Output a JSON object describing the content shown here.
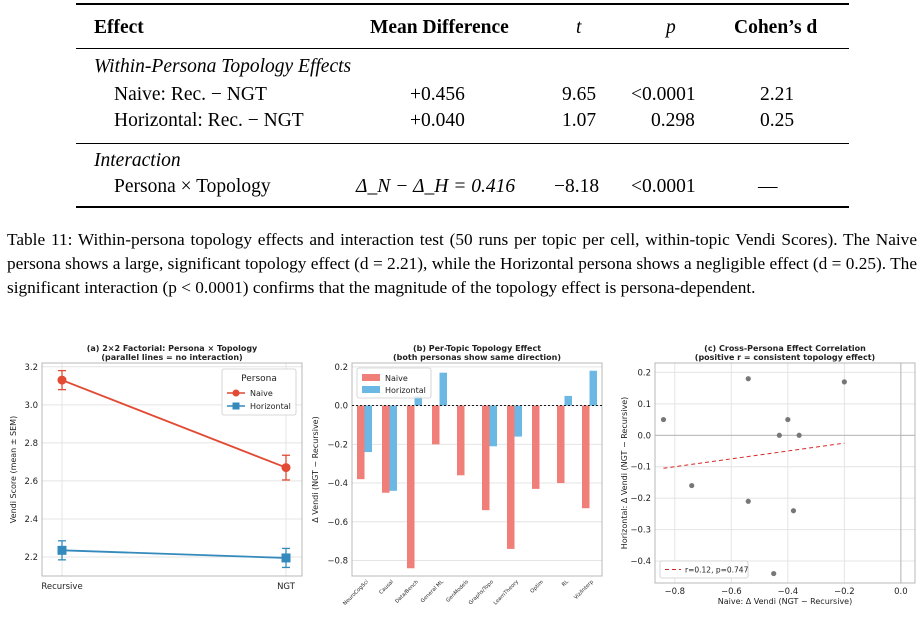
{
  "table": {
    "headers": {
      "effect": "Effect",
      "mean_diff": "Mean Difference",
      "t": "t",
      "p": "p",
      "cohens_d": "Cohen’s d"
    },
    "sections": [
      {
        "title": "Within-Persona Topology Effects",
        "rows": [
          {
            "effect": "Naive: Rec. − NGT",
            "mean_diff": "+0.456",
            "t": "9.65",
            "p": "<0.0001",
            "d": "2.21"
          },
          {
            "effect": "Horizontal: Rec. − NGT",
            "mean_diff": "+0.040",
            "t": "1.07",
            "p": "0.298",
            "d": "0.25"
          }
        ]
      },
      {
        "title": "Interaction",
        "rows": [
          {
            "effect": "Persona × Topology",
            "mean_diff": "Δ_N − Δ_H = 0.416",
            "t": "−8.18",
            "p": "<0.0001",
            "d": "—"
          }
        ]
      }
    ]
  },
  "caption": "Table 11: Within-persona topology effects and interaction test (50 runs per topic per cell, within-topic Vendi Scores). The Naive persona shows a large, significant topology effect (d = 2.21), while the Horizontal persona shows a negligible effect (d = 0.25). The significant interaction (p < 0.0001) confirms that the magnitude of the topology effect is persona-dependent.",
  "chart_data": [
    {
      "type": "line",
      "title": "(a) 2×2 Factorial: Persona × Topology",
      "subtitle": "(parallel lines = no interaction)",
      "ylabel": "Vendi Score (mean ± SEM)",
      "xlabel": "",
      "categories": [
        "Recursive",
        "NGT"
      ],
      "ylim": [
        2.1,
        3.22
      ],
      "yticks": [
        "2.2",
        "2.4",
        "2.6",
        "2.8",
        "3.0",
        "3.2"
      ],
      "legend_title": "Persona",
      "legend_position": "top-right",
      "series": [
        {
          "name": "Naive",
          "color": "#e24a33",
          "values": [
            3.13,
            2.67
          ],
          "sem": [
            0.05,
            0.065
          ]
        },
        {
          "name": "Horizontal",
          "color": "#348ABD",
          "values": [
            2.235,
            2.195
          ],
          "sem": [
            0.05,
            0.05
          ]
        }
      ]
    },
    {
      "type": "bar",
      "title": "(b) Per-Topic Topology Effect",
      "subtitle": "(both personas show same direction)",
      "ylabel": "Δ Vendi (NGT − Recursive)",
      "xlabel": "",
      "categories": [
        "NeuroCogSci",
        "Causal",
        "Data/Bench",
        "General ML",
        "GenModels",
        "Graphs/Topo",
        "LearnTheory",
        "Optim",
        "RL",
        "Viz/Interp"
      ],
      "ylim": [
        -0.88,
        0.22
      ],
      "yticks": [
        "−0.8",
        "−0.6",
        "−0.4",
        "−0.2",
        "0.0",
        "0.2"
      ],
      "legend_position": "top-left",
      "series": [
        {
          "name": "Naive",
          "color": "#ef7f78",
          "values": [
            -0.38,
            -0.45,
            -0.84,
            -0.2,
            -0.36,
            -0.54,
            -0.74,
            -0.43,
            -0.4,
            -0.53
          ]
        },
        {
          "name": "Horizontal",
          "color": "#6bb8e5",
          "values": [
            -0.24,
            -0.44,
            0.05,
            0.17,
            0.0,
            -0.21,
            -0.16,
            0.0,
            0.05,
            0.18
          ]
        }
      ]
    },
    {
      "type": "scatter",
      "title": "(c) Cross-Persona Effect Correlation",
      "subtitle": "(positive r = consistent topology effect)",
      "xlabel": "Naive: Δ Vendi (NGT − Recursive)",
      "ylabel": "Horizontal: Δ Vendi (NGT − Recursive)",
      "xlim": [
        -0.87,
        0.05
      ],
      "ylim": [
        -0.47,
        0.23
      ],
      "xticks": [
        "−0.8",
        "−0.6",
        "−0.4",
        "−0.2",
        "0.0"
      ],
      "yticks": [
        "−0.4",
        "−0.3",
        "−0.2",
        "−0.1",
        "0.0",
        "0.1",
        "0.2"
      ],
      "points": [
        {
          "x": -0.84,
          "y": 0.05
        },
        {
          "x": -0.74,
          "y": -0.16
        },
        {
          "x": -0.54,
          "y": 0.18
        },
        {
          "x": -0.54,
          "y": -0.21
        },
        {
          "x": -0.45,
          "y": -0.44
        },
        {
          "x": -0.43,
          "y": 0.0
        },
        {
          "x": -0.4,
          "y": 0.05
        },
        {
          "x": -0.38,
          "y": -0.24
        },
        {
          "x": -0.36,
          "y": 0.0
        },
        {
          "x": -0.2,
          "y": 0.17
        }
      ],
      "fit_line": {
        "label": "r=0.12, p=0.747",
        "color": "#d62728",
        "x": [
          -0.84,
          -0.2
        ],
        "y": [
          -0.105,
          -0.025
        ]
      },
      "legend_position": "bottom-left"
    }
  ]
}
